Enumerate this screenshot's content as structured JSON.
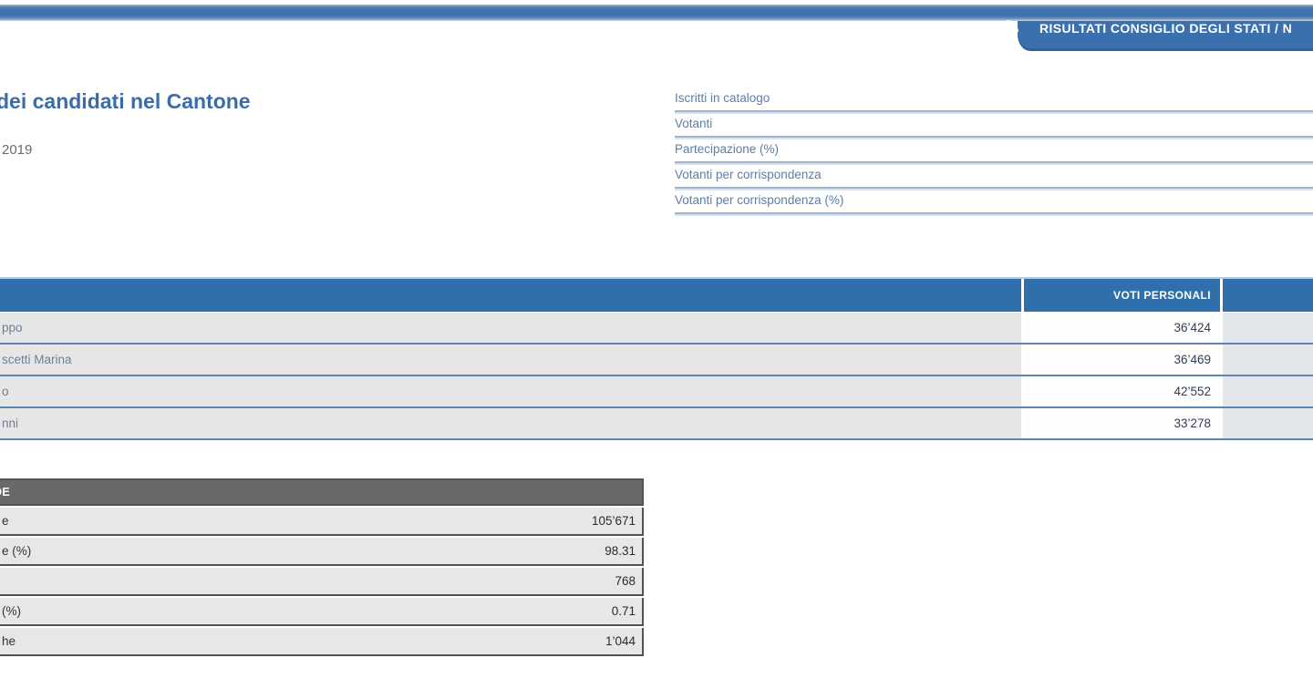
{
  "header": {
    "tab_label": "RISULTATI CONSIGLIO DEGLI STATI / N"
  },
  "intro": {
    "title_fragment": "dei candidati nel Cantone",
    "date_fragment": "2019"
  },
  "participation": {
    "labels": [
      "Iscritti in catalogo",
      "Votanti",
      "Partecipazione (%)",
      "Votanti per corrispondenza",
      "Votanti per corrispondenza (%)"
    ]
  },
  "candidates": {
    "column_header": "VOTI PERSONALI",
    "rows": [
      {
        "name_fragment": "ppo",
        "voti_personali": "36’424"
      },
      {
        "name_fragment": "scetti Marina",
        "voti_personali": "36’469"
      },
      {
        "name_fragment": "o",
        "voti_personali": "42’552"
      },
      {
        "name_fragment": "nni",
        "voti_personali": "33’278"
      }
    ]
  },
  "summary": {
    "header_fragment": "DE",
    "rows": [
      {
        "label_fragment": "e",
        "value": "105’671"
      },
      {
        "label_fragment": "e (%)",
        "value": "98.31"
      },
      {
        "label_fragment": "",
        "value": "768"
      },
      {
        "label_fragment": "(%)",
        "value": "0.71"
      },
      {
        "label_fragment": "he",
        "value": "1’044"
      }
    ]
  },
  "colors": {
    "accent_blue": "#3a70ad",
    "table_header_blue": "#2f6fac",
    "row_separator_blue": "#5d86b7",
    "participation_label_blue": "#5b7ea9",
    "summary_header_gray": "#696969",
    "row_gray": "#e7e7e7"
  }
}
